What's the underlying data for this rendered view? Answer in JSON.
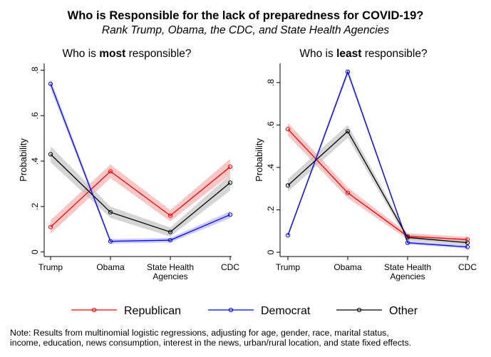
{
  "figure": {
    "title": "Who is Responsible for the lack of preparedness for COVID-19?",
    "subtitle": "Rank Trump, Obama, the CDC, and State Health Agencies",
    "note_lines": [
      "Note: Results from multinomial logistic regressions, adjusting for age, gender, race, marital status,",
      "income, education, news consumption, interest in the news, urban/rural location, and state fixed effects."
    ]
  },
  "legend": [
    {
      "name": "Republican",
      "color": "#ff0000"
    },
    {
      "name": "Democrat",
      "color": "#0000ff"
    },
    {
      "name": "Other",
      "color": "#000000"
    }
  ],
  "chart_data": [
    {
      "type": "line",
      "title_parts": [
        "Who is ",
        "most",
        " responsible?"
      ],
      "ylabel": "Probability",
      "categories": [
        [
          "Trump"
        ],
        [
          "Obama"
        ],
        [
          "State Health",
          "Agencies"
        ],
        [
          "CDC"
        ]
      ],
      "yticks": [
        0,
        0.2,
        0.4,
        0.6,
        0.8
      ],
      "ytick_labels": [
        "0",
        ".2",
        ".4",
        ".6",
        ".8"
      ],
      "ylim": [
        -0.02,
        0.83
      ],
      "grid": false,
      "series": [
        {
          "name": "Republican",
          "color": "#ff0000",
          "band_color": "#f7a1a1",
          "values": [
            0.11,
            0.355,
            0.16,
            0.375
          ],
          "ci_low": [
            0.08,
            0.325,
            0.135,
            0.34
          ],
          "ci_high": [
            0.14,
            0.385,
            0.185,
            0.41
          ]
        },
        {
          "name": "Democrat",
          "color": "#0000ff",
          "band_color": "#a9a9f3",
          "values": [
            0.74,
            0.047,
            0.052,
            0.164
          ],
          "ci_low": [
            0.72,
            0.037,
            0.042,
            0.149
          ],
          "ci_high": [
            0.76,
            0.057,
            0.062,
            0.179
          ]
        },
        {
          "name": "Other",
          "color": "#000000",
          "band_color": "#b9b9b9",
          "values": [
            0.43,
            0.175,
            0.088,
            0.305
          ],
          "ci_low": [
            0.395,
            0.15,
            0.068,
            0.27
          ],
          "ci_high": [
            0.465,
            0.2,
            0.108,
            0.34
          ]
        }
      ]
    },
    {
      "type": "line",
      "title_parts": [
        "Who is ",
        "least",
        " responsible?"
      ],
      "ylabel": "Probability",
      "categories": [
        [
          "Trump"
        ],
        [
          "Obama"
        ],
        [
          "State Health",
          "Agencies"
        ],
        [
          "CDC"
        ]
      ],
      "yticks": [
        0,
        0.2,
        0.4,
        0.6,
        0.8
      ],
      "ytick_labels": [
        "0",
        ".2",
        ".4",
        ".6",
        ".8"
      ],
      "ylim": [
        -0.02,
        0.89
      ],
      "grid": false,
      "series": [
        {
          "name": "Republican",
          "color": "#ff0000",
          "band_color": "#f7a1a1",
          "values": [
            0.58,
            0.28,
            0.075,
            0.06
          ],
          "ci_low": [
            0.55,
            0.255,
            0.06,
            0.048
          ],
          "ci_high": [
            0.61,
            0.305,
            0.09,
            0.072
          ]
        },
        {
          "name": "Democrat",
          "color": "#0000ff",
          "band_color": "#a9a9f3",
          "values": [
            0.08,
            0.85,
            0.045,
            0.025
          ],
          "ci_low": [
            0.07,
            0.835,
            0.037,
            0.018
          ],
          "ci_high": [
            0.09,
            0.865,
            0.053,
            0.032
          ]
        },
        {
          "name": "Other",
          "color": "#000000",
          "band_color": "#b9b9b9",
          "values": [
            0.315,
            0.57,
            0.07,
            0.045
          ],
          "ci_low": [
            0.285,
            0.54,
            0.055,
            0.032
          ],
          "ci_high": [
            0.345,
            0.6,
            0.085,
            0.058
          ]
        }
      ]
    }
  ]
}
